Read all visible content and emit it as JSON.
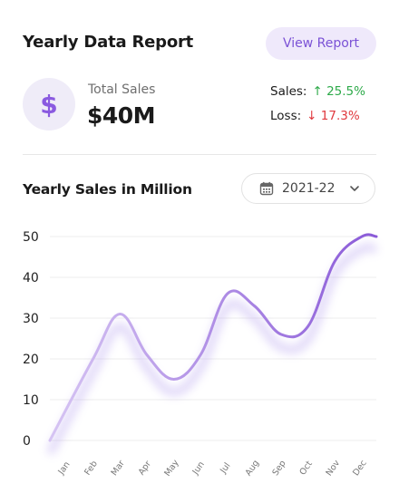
{
  "header": {
    "title": "Yearly Data Report",
    "view_report_label": "View Report"
  },
  "summary": {
    "currency_symbol": "$",
    "total_label": "Total Sales",
    "total_value": "$40M",
    "sales_label": "Sales:",
    "sales_change": "↑ 25.5%",
    "loss_label": "Loss:",
    "loss_change": "↓ 17.3%",
    "up_color": "#2eaa4a",
    "down_color": "#e0393e"
  },
  "chart_section": {
    "title": "Yearly Sales in Million",
    "year_select_value": "2021-22",
    "icons": [
      "calendar-icon",
      "chevron-down-icon"
    ]
  },
  "chart_data": {
    "type": "line",
    "title": "Yearly Sales in Million",
    "categories": [
      "Jan",
      "Feb",
      "Mar",
      "Apr",
      "May",
      "Jun",
      "Jul",
      "Aug",
      "Sep",
      "Oct",
      "Nov",
      "Dec"
    ],
    "values": [
      0,
      20,
      31,
      21,
      15,
      21,
      36,
      33,
      26,
      28,
      44,
      50
    ],
    "yticks": [
      0,
      10,
      20,
      30,
      40,
      50
    ],
    "ylim": [
      0,
      50
    ],
    "grid": true,
    "line_color_start": "#d6c4f3",
    "line_color_end": "#8a5ad8"
  }
}
